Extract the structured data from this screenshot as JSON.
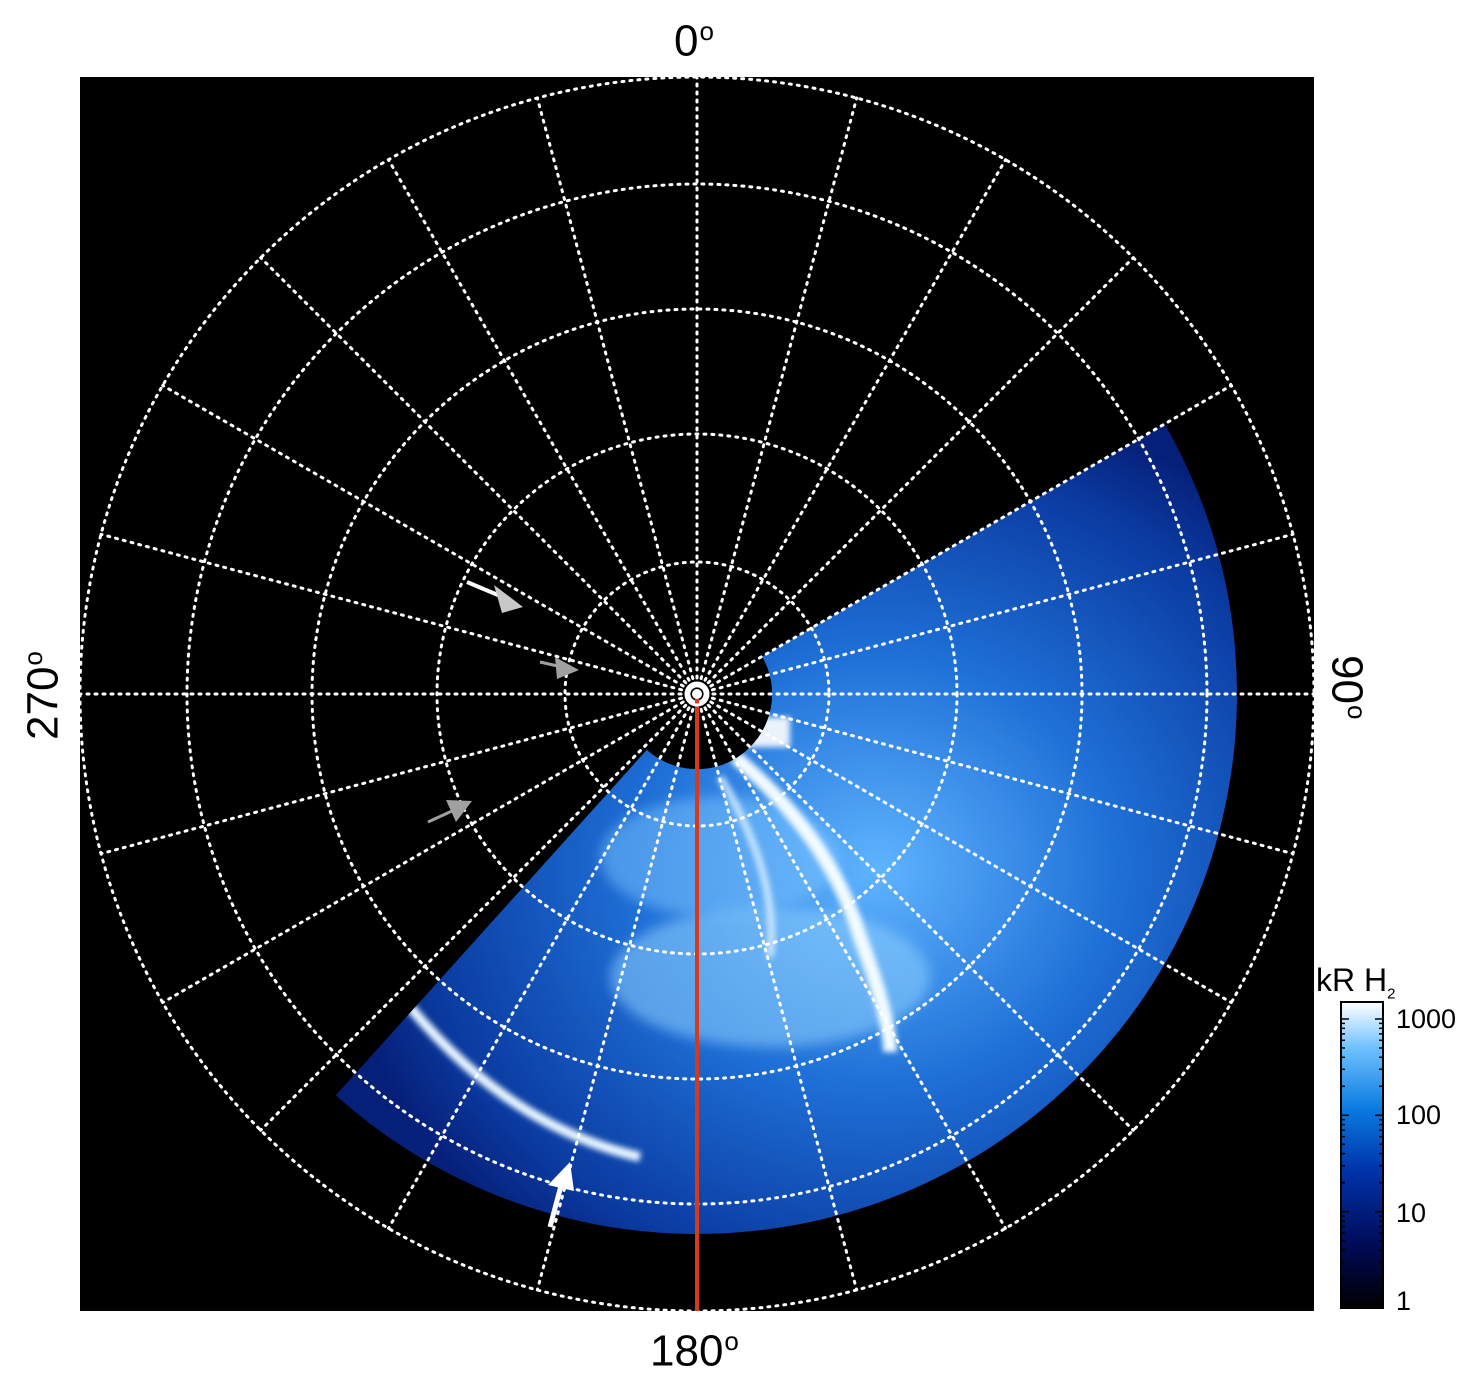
{
  "axes": {
    "top_label": "0",
    "right_label": "90",
    "bottom_label": "180",
    "left_label": "270",
    "degree_symbol": "o"
  },
  "colorbar": {
    "title": "kR H",
    "title_subscript": "2",
    "ticks": [
      "1000",
      "100",
      "10",
      "1"
    ],
    "scale": "log",
    "range": [
      1,
      1500
    ],
    "colors": [
      "#000000",
      "#000a55",
      "#0033aa",
      "#0a7ae0",
      "#6fc1ff",
      "#ffffff"
    ]
  },
  "colors": {
    "background": "#000000",
    "grid": "#ffffff",
    "meridian_line": "#d9391b",
    "arrow_white": "#ffffff",
    "arrow_grey": "#a0a0a0"
  }
}
